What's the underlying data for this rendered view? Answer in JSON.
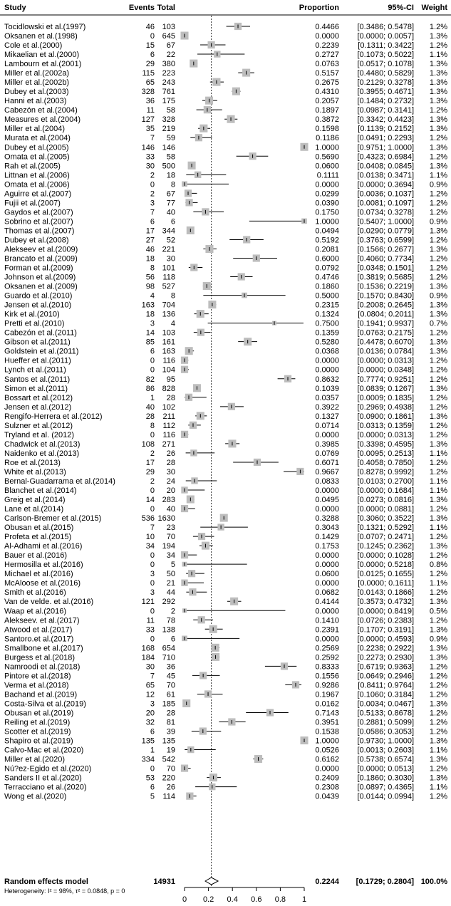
{
  "chart_data": {
    "type": "forest",
    "headers": {
      "study": "Study",
      "events": "Events",
      "total": "Total",
      "proportion": "Proportion",
      "ci": "95%-CI",
      "weight": "Weight"
    },
    "xlim": [
      0,
      1
    ],
    "xticks": [
      "0",
      "0.2",
      "0.4",
      "0.6",
      "0.8",
      "1"
    ],
    "reference_line": 0.2244,
    "rows": [
      {
        "study": "Tocidlowski et al.(1997)",
        "events": "46",
        "total": "103",
        "p": "0.4466",
        "ci": "[0.3486; 0.5478]",
        "w": "1.2%"
      },
      {
        "study": "Oksanen et al.(1998)",
        "events": "0",
        "total": "645",
        "p": "0.0000",
        "ci": "[0.0000; 0.0057]",
        "w": "1.3%"
      },
      {
        "study": "Cole et al.(2000)",
        "events": "15",
        "total": "67",
        "p": "0.2239",
        "ci": "[0.1311; 0.3422]",
        "w": "1.2%"
      },
      {
        "study": "Mikaelian et al.(2000)",
        "events": "6",
        "total": "22",
        "p": "0.2727",
        "ci": "[0.1073; 0.5022]",
        "w": "1.1%"
      },
      {
        "study": "Lambourn et al.(2001)",
        "events": "29",
        "total": "380",
        "p": "0.0763",
        "ci": "[0.0517; 0.1078]",
        "w": "1.3%"
      },
      {
        "study": "Miller et al.(2002a)",
        "events": "115",
        "total": "223",
        "p": "0.5157",
        "ci": "[0.4480; 0.5829]",
        "w": "1.3%"
      },
      {
        "study": "Miller et al.(2002b)",
        "events": "65",
        "total": "243",
        "p": "0.2675",
        "ci": "[0.2129; 0.3278]",
        "w": "1.3%"
      },
      {
        "study": "Dubey et al.(2003)",
        "events": "328",
        "total": "761",
        "p": "0.4310",
        "ci": "[0.3955; 0.4671]",
        "w": "1.3%"
      },
      {
        "study": "Hanni et al.(2003)",
        "events": "36",
        "total": "175",
        "p": "0.2057",
        "ci": "[0.1484; 0.2732]",
        "w": "1.3%"
      },
      {
        "study": "Cabezón et al.(2004)",
        "events": "11",
        "total": "58",
        "p": "0.1897",
        "ci": "[0.0987; 0.3141]",
        "w": "1.2%"
      },
      {
        "study": "Measures et al.(2004)",
        "events": "127",
        "total": "328",
        "p": "0.3872",
        "ci": "[0.3342; 0.4423]",
        "w": "1.3%"
      },
      {
        "study": "Miller et al.(2004)",
        "events": "35",
        "total": "219",
        "p": "0.1598",
        "ci": "[0.1139; 0.2152]",
        "w": "1.3%"
      },
      {
        "study": "Murata et al.(2004)",
        "events": "7",
        "total": "59",
        "p": "0.1186",
        "ci": "[0.0491; 0.2293]",
        "w": "1.2%"
      },
      {
        "study": "Dubey et al.(2005)",
        "events": "146",
        "total": "146",
        "p": "1.0000",
        "ci": "[0.9751; 1.0000]",
        "w": "1.3%"
      },
      {
        "study": "Omata et al.(2005)",
        "events": "33",
        "total": "58",
        "p": "0.5690",
        "ci": "[0.4323; 0.6984]",
        "w": "1.2%"
      },
      {
        "study": "Rah et al.(2005)",
        "events": "30",
        "total": "500",
        "p": "0.0600",
        "ci": "[0.0408; 0.0845]",
        "w": "1.3%"
      },
      {
        "study": "Littnan et al.(2006)",
        "events": "2",
        "total": "18",
        "p": "0.1111",
        "ci": "[0.0138; 0.3471]",
        "w": "1.1%"
      },
      {
        "study": "Omata et al.(2006)",
        "events": "0",
        "total": "8",
        "p": "0.0000",
        "ci": "[0.0000; 0.3694]",
        "w": "0.9%"
      },
      {
        "study": "Aguirre et al.(2007)",
        "events": "2",
        "total": "67",
        "p": "0.0299",
        "ci": "[0.0036; 0.1037]",
        "w": "1.2%"
      },
      {
        "study": "Fujii et al.(2007)",
        "events": "3",
        "total": "77",
        "p": "0.0390",
        "ci": "[0.0081; 0.1097]",
        "w": "1.2%"
      },
      {
        "study": "Gaydos et al.(2007)",
        "events": "7",
        "total": "40",
        "p": "0.1750",
        "ci": "[0.0734; 0.3278]",
        "w": "1.2%"
      },
      {
        "study": "Sobrino et al.(2007)",
        "events": "6",
        "total": "6",
        "p": "1.0000",
        "ci": "[0.5407; 1.0000]",
        "w": "0.9%"
      },
      {
        "study": "Thomas et al.(2007)",
        "events": "17",
        "total": "344",
        "p": "0.0494",
        "ci": "[0.0290; 0.0779]",
        "w": "1.3%"
      },
      {
        "study": "Dubey et al.(2008)",
        "events": "27",
        "total": "52",
        "p": "0.5192",
        "ci": "[0.3763; 0.6599]",
        "w": "1.2%"
      },
      {
        "study": "Alekseev et al.(2009)",
        "events": "46",
        "total": "221",
        "p": "0.2081",
        "ci": "[0.1566; 0.2677]",
        "w": "1.3%"
      },
      {
        "study": "Brancato et al.(2009)",
        "events": "18",
        "total": "30",
        "p": "0.6000",
        "ci": "[0.4060; 0.7734]",
        "w": "1.2%"
      },
      {
        "study": "Forman et al.(2009)",
        "events": "8",
        "total": "101",
        "p": "0.0792",
        "ci": "[0.0348; 0.1501]",
        "w": "1.2%"
      },
      {
        "study": "Johnson et al.(2009)",
        "events": "56",
        "total": "118",
        "p": "0.4746",
        "ci": "[0.3819; 0.5685]",
        "w": "1.2%"
      },
      {
        "study": "Oksanen et al.(2009)",
        "events": "98",
        "total": "527",
        "p": "0.1860",
        "ci": "[0.1536; 0.2219]",
        "w": "1.3%"
      },
      {
        "study": "Guardo et al.(2010)",
        "events": "4",
        "total": "8",
        "p": "0.5000",
        "ci": "[0.1570; 0.8430]",
        "w": "0.9%"
      },
      {
        "study": "Jensen et al.(2010)",
        "events": "163",
        "total": "704",
        "p": "0.2315",
        "ci": "[0.2008; 0.2645]",
        "w": "1.3%"
      },
      {
        "study": "Kirk et al.(2010)",
        "events": "18",
        "total": "136",
        "p": "0.1324",
        "ci": "[0.0804; 0.2011]",
        "w": "1.3%"
      },
      {
        "study": "Pretti et al.(2010)",
        "events": "3",
        "total": "4",
        "p": "0.7500",
        "ci": "[0.1941; 0.9937]",
        "w": "0.7%"
      },
      {
        "study": "Cabezón et al.(2011)",
        "events": "14",
        "total": "103",
        "p": "0.1359",
        "ci": "[0.0763; 0.2175]",
        "w": "1.2%"
      },
      {
        "study": "Gibson et al.(2011)",
        "events": "85",
        "total": "161",
        "p": "0.5280",
        "ci": "[0.4478; 0.6070]",
        "w": "1.3%"
      },
      {
        "study": "Goldstein et al.(2011)",
        "events": "6",
        "total": "163",
        "p": "0.0368",
        "ci": "[0.0136; 0.0784]",
        "w": "1.3%"
      },
      {
        "study": "Hueffer et al.(2011)",
        "events": "0",
        "total": "116",
        "p": "0.0000",
        "ci": "[0.0000; 0.0313]",
        "w": "1.2%"
      },
      {
        "study": "Lynch et al.(2011)",
        "events": "0",
        "total": "104",
        "p": "0.0000",
        "ci": "[0.0000; 0.0348]",
        "w": "1.2%"
      },
      {
        "study": "Santos et al.(2011)",
        "events": "82",
        "total": "95",
        "p": "0.8632",
        "ci": "[0.7774; 0.9251]",
        "w": "1.2%"
      },
      {
        "study": "Simon et al.(2011)",
        "events": "86",
        "total": "828",
        "p": "0.1039",
        "ci": "[0.0839; 0.1267]",
        "w": "1.3%"
      },
      {
        "study": "Bossart et al.(2012)",
        "events": "1",
        "total": "28",
        "p": "0.0357",
        "ci": "[0.0009; 0.1835]",
        "w": "1.2%"
      },
      {
        "study": "Jensen et al.(2012)",
        "events": "40",
        "total": "102",
        "p": "0.3922",
        "ci": "[0.2969; 0.4938]",
        "w": "1.2%"
      },
      {
        "study": "Rengifo-Herrera et al.(2012)",
        "events": "28",
        "total": "211",
        "p": "0.1327",
        "ci": "[0.0900; 0.1861]",
        "w": "1.3%"
      },
      {
        "study": "Sulzner et al.(2012)",
        "events": "8",
        "total": "112",
        "p": "0.0714",
        "ci": "[0.0313; 0.1359]",
        "w": "1.2%"
      },
      {
        "study": "Tryland et al. (2012)",
        "events": "0",
        "total": "116",
        "p": "0.0000",
        "ci": "[0.0000; 0.0313]",
        "w": "1.2%"
      },
      {
        "study": "Chadwick et al.(2013)",
        "events": "108",
        "total": "271",
        "p": "0.3985",
        "ci": "[0.3398; 0.4595]",
        "w": "1.3%"
      },
      {
        "study": "Naidenko et al.(2013)",
        "events": "2",
        "total": "26",
        "p": "0.0769",
        "ci": "[0.0095; 0.2513]",
        "w": "1.1%"
      },
      {
        "study": "Roe et al.(2013)",
        "events": "17",
        "total": "28",
        "p": "0.6071",
        "ci": "[0.4058; 0.7850]",
        "w": "1.2%"
      },
      {
        "study": "White et al.(2013)",
        "events": "29",
        "total": "30",
        "p": "0.9667",
        "ci": "[0.8278; 0.9992]",
        "w": "1.2%"
      },
      {
        "study": "Bernal-Guadarrama et al.(2014)",
        "events": "2",
        "total": "24",
        "p": "0.0833",
        "ci": "[0.0103; 0.2700]",
        "w": "1.1%"
      },
      {
        "study": "Blanchet et al.(2014)",
        "events": "0",
        "total": "20",
        "p": "0.0000",
        "ci": "[0.0000; 0.1684]",
        "w": "1.1%"
      },
      {
        "study": "Greig et al.(2014)",
        "events": "14",
        "total": "283",
        "p": "0.0495",
        "ci": "[0.0273; 0.0816]",
        "w": "1.3%"
      },
      {
        "study": "Lane et al.(2014)",
        "events": "0",
        "total": "40",
        "p": "0.0000",
        "ci": "[0.0000; 0.0881]",
        "w": "1.2%"
      },
      {
        "study": "Carlson-Bremer et al.(2015)",
        "events": "536",
        "total": "1630",
        "p": "0.3288",
        "ci": "[0.3060; 0.3522]",
        "w": "1.3%"
      },
      {
        "study": "Obusan et al.(2015)",
        "events": "7",
        "total": "23",
        "p": "0.3043",
        "ci": "[0.1321; 0.5292]",
        "w": "1.1%"
      },
      {
        "study": "Profeta et al.(2015)",
        "events": "10",
        "total": "70",
        "p": "0.1429",
        "ci": "[0.0707; 0.2471]",
        "w": "1.2%"
      },
      {
        "study": "Al-Adhami et al.(2016)",
        "events": "34",
        "total": "194",
        "p": "0.1753",
        "ci": "[0.1245; 0.2362]",
        "w": "1.3%"
      },
      {
        "study": "Bauer et al.(2016)",
        "events": "0",
        "total": "34",
        "p": "0.0000",
        "ci": "[0.0000; 0.1028]",
        "w": "1.2%"
      },
      {
        "study": "Hermosilla et al.(2016)",
        "events": "0",
        "total": "5",
        "p": "0.0000",
        "ci": "[0.0000; 0.5218]",
        "w": "0.8%"
      },
      {
        "study": "Michael et al.(2016)",
        "events": "3",
        "total": "50",
        "p": "0.0600",
        "ci": "[0.0125; 0.1655]",
        "w": "1.2%"
      },
      {
        "study": "McAloose et al.(2016)",
        "events": "0",
        "total": "21",
        "p": "0.0000",
        "ci": "[0.0000; 0.1611]",
        "w": "1.1%"
      },
      {
        "study": "Smith et al.(2016)",
        "events": "3",
        "total": "44",
        "p": "0.0682",
        "ci": "[0.0143; 0.1866]",
        "w": "1.2%"
      },
      {
        "study": "Van de velde. et al.(2016)",
        "events": "121",
        "total": "292",
        "p": "0.4144",
        "ci": "[0.3573; 0.4732]",
        "w": "1.3%"
      },
      {
        "study": "Waap et al.(2016)",
        "events": "0",
        "total": "2",
        "p": "0.0000",
        "ci": "[0.0000; 0.8419]",
        "w": "0.5%"
      },
      {
        "study": "Alekseev. et al.(2017)",
        "events": "11",
        "total": "78",
        "p": "0.1410",
        "ci": "[0.0726; 0.2383]",
        "w": "1.2%"
      },
      {
        "study": "Atwood et al.(2017)",
        "events": "33",
        "total": "138",
        "p": "0.2391",
        "ci": "[0.1707; 0.3191]",
        "w": "1.3%"
      },
      {
        "study": "Santoro.et al.(2017)",
        "events": "0",
        "total": "6",
        "p": "0.0000",
        "ci": "[0.0000; 0.4593]",
        "w": "0.9%"
      },
      {
        "study": "Smallbone et al.(2017)",
        "events": "168",
        "total": "654",
        "p": "0.2569",
        "ci": "[0.2238; 0.2922]",
        "w": "1.3%"
      },
      {
        "study": "Burgess et al.(2018)",
        "events": "184",
        "total": "710",
        "p": "0.2592",
        "ci": "[0.2273; 0.2930]",
        "w": "1.3%"
      },
      {
        "study": "Namroodi et al.(2018)",
        "events": "30",
        "total": "36",
        "p": "0.8333",
        "ci": "[0.6719; 0.9363]",
        "w": "1.2%"
      },
      {
        "study": "Pintore et al.(2018)",
        "events": "7",
        "total": "45",
        "p": "0.1556",
        "ci": "[0.0649; 0.2946]",
        "w": "1.2%"
      },
      {
        "study": "Verma et al.(2018)",
        "events": "65",
        "total": "70",
        "p": "0.9286",
        "ci": "[0.8411; 0.9764]",
        "w": "1.2%"
      },
      {
        "study": "Bachand et al.(2019)",
        "events": "12",
        "total": "61",
        "p": "0.1967",
        "ci": "[0.1060; 0.3184]",
        "w": "1.2%"
      },
      {
        "study": "Costa-Silva et al.(2019)",
        "events": "3",
        "total": "185",
        "p": "0.0162",
        "ci": "[0.0034; 0.0467]",
        "w": "1.3%"
      },
      {
        "study": "Obusan et al.(2019)",
        "events": "20",
        "total": "28",
        "p": "0.7143",
        "ci": "[0.5133; 0.8678]",
        "w": "1.2%"
      },
      {
        "study": "Reiling et al.(2019)",
        "events": "32",
        "total": "81",
        "p": "0.3951",
        "ci": "[0.2881; 0.5099]",
        "w": "1.2%"
      },
      {
        "study": "Scotter et al.(2019)",
        "events": "6",
        "total": "39",
        "p": "0.1538",
        "ci": "[0.0586; 0.3053]",
        "w": "1.2%"
      },
      {
        "study": "Shapiro et al.(2019)",
        "events": "135",
        "total": "135",
        "p": "1.0000",
        "ci": "[0.9730; 1.0000]",
        "w": "1.3%"
      },
      {
        "study": "Calvo-Mac et al.(2020)",
        "events": "1",
        "total": "19",
        "p": "0.0526",
        "ci": "[0.0013; 0.2603]",
        "w": "1.1%"
      },
      {
        "study": "Miller et al.(2020)",
        "events": "334",
        "total": "542",
        "p": "0.6162",
        "ci": "[0.5738; 0.6574]",
        "w": "1.3%"
      },
      {
        "study": "Nú?ez-Egido et al.(2020)",
        "events": "0",
        "total": "70",
        "p": "0.0000",
        "ci": "[0.0000; 0.0513]",
        "w": "1.2%"
      },
      {
        "study": "Sanders II et al.(2020)",
        "events": "53",
        "total": "220",
        "p": "0.2409",
        "ci": "[0.1860; 0.3030]",
        "w": "1.3%"
      },
      {
        "study": "Terracciano et al.(2020)",
        "events": "6",
        "total": "26",
        "p": "0.2308",
        "ci": "[0.0897; 0.4365]",
        "w": "1.1%"
      },
      {
        "study": "Wong et al.(2020)",
        "events": "5",
        "total": "114",
        "p": "0.0439",
        "ci": "[0.0144; 0.0994]",
        "w": "1.2%"
      }
    ],
    "summary": {
      "label": "Random effects model",
      "total": "14931",
      "p": "0.2244",
      "ci": "[0.1729; 0.2804]",
      "ci_low": 0.1729,
      "ci_high": 0.2804,
      "w": "100.0%"
    },
    "heterogeneity": "Heterogeneity: I² = 98%, τ² = 0.0848, p = 0"
  }
}
